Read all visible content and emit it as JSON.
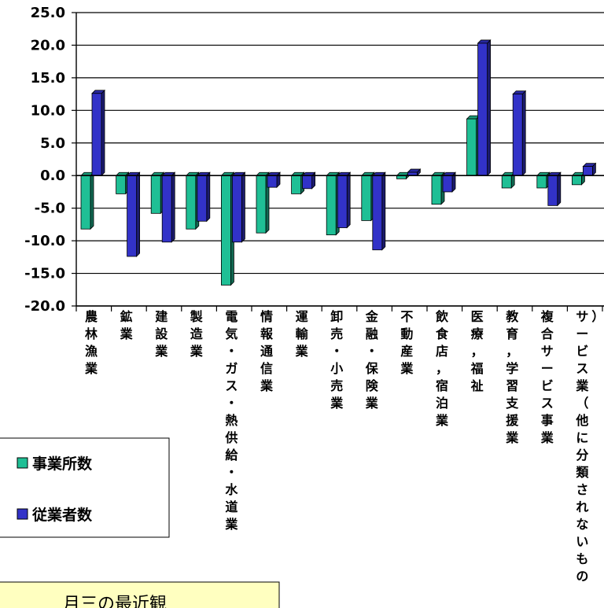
{
  "colors": {
    "establishments": "#1fbf95",
    "employees": "#3232c8",
    "note_bg": "#ffffc0"
  },
  "note": {
    "text": "月三の最近観"
  },
  "chart_data": {
    "type": "bar",
    "title": "",
    "xlabel": "",
    "ylabel": "",
    "ylim": [
      -20,
      25
    ],
    "yticks": [
      25.0,
      20.0,
      15.0,
      10.0,
      5.0,
      0.0,
      -5.0,
      -10.0,
      -15.0,
      -20.0
    ],
    "ytick_labels": [
      "25.0",
      "20.0",
      "15.0",
      "10.0",
      "5.0",
      "0.0",
      "-5.0",
      "-10.0",
      "-15.0",
      "-20.0"
    ],
    "grid": true,
    "legend_position": "left",
    "categories": [
      "農林漁業",
      "鉱業",
      "建設業",
      "製造業",
      "電気・ガス・熱供給・水道業",
      "情報通信業",
      "運輸業",
      "卸売・小売業",
      "金融・保険業",
      "不動産業",
      "飲食店，宿泊業",
      "医療，福祉",
      "教育，学習支援業",
      "複合サービス事業",
      "サービス業（他に分類されないもの）"
    ],
    "series": [
      {
        "name": "事業所数",
        "values": [
          -8.2,
          -2.8,
          -5.8,
          -8.2,
          -16.8,
          -8.8,
          -2.8,
          -9.1,
          -6.9,
          -0.5,
          -4.4,
          8.7,
          -1.9,
          -1.9,
          -1.4
        ]
      },
      {
        "name": "従業者数",
        "values": [
          12.6,
          -12.4,
          -10.2,
          -7.0,
          -10.2,
          -1.8,
          -2.0,
          -8.0,
          -11.4,
          0.5,
          -2.5,
          20.3,
          12.5,
          -4.6,
          1.4
        ]
      }
    ]
  }
}
